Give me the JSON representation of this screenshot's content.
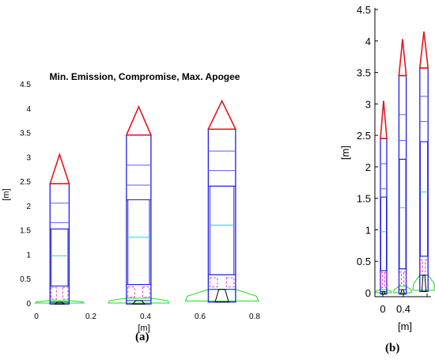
{
  "figure_a": {
    "title": "Min. Emission, Compromise, Max. Apogee",
    "xlabel": "[m]",
    "ylabel": "[m]",
    "x_ticks": [
      "0",
      "0.2",
      "0.4",
      "0.6",
      "0.8"
    ],
    "y_ticks": [
      "0",
      "0.5",
      "1",
      "1.5",
      "2",
      "2.5",
      "3",
      "3.5",
      "4",
      "4.5"
    ],
    "caption": "(a)",
    "xlim": [
      0,
      0.8
    ],
    "ylim": [
      0,
      4.5
    ]
  },
  "figure_b": {
    "xlabel": "[m]",
    "ylabel": "[m]",
    "x_ticks": [
      "0",
      "0.4"
    ],
    "y_ticks": [
      "0",
      "0.5",
      "1",
      "1.5",
      "2",
      "2.5",
      "3",
      "3.5",
      "4",
      "4.5"
    ],
    "caption": "(b)",
    "ylim": [
      0,
      4.5
    ]
  },
  "chart_data": {
    "type": "diagram",
    "rockets": [
      {
        "design": "Min. Emission",
        "center_x": 0.085,
        "width": 0.07,
        "body_top": 2.45,
        "nose_tip": 3.05,
        "sections": [
          2.05,
          1.65,
          1.52,
          0.35,
          0.02
        ],
        "cyan_line": 0.97,
        "magenta_box": [
          0.08,
          0.32
        ],
        "nozzle_bottom": -0.02,
        "fin_span": 0.09,
        "fin_top": 0.05
      },
      {
        "design": "Compromise",
        "center_x": 0.375,
        "width": 0.09,
        "body_top": 3.45,
        "nose_tip": 4.03,
        "sections": [
          2.83,
          2.42,
          2.12,
          0.38,
          0.05
        ],
        "cyan_line": 1.35,
        "magenta_box": [
          0.12,
          0.33
        ],
        "nozzle_bottom": -0.02,
        "fin_span": 0.11,
        "fin_top": 0.1
      },
      {
        "design": "Max. Apogee",
        "center_x": 0.68,
        "width": 0.1,
        "body_top": 3.57,
        "nose_tip": 4.15,
        "sections": [
          3.12,
          2.72,
          2.4,
          0.58,
          0.28
        ],
        "cyan_line": 1.6,
        "magenta_box": [
          0.33,
          0.52
        ],
        "nozzle_bottom": 0.02,
        "fin_span": 0.14,
        "fin_top": 0.28
      }
    ],
    "colors": {
      "nose": "#e8141c",
      "body": "#1f1fe6",
      "section_light": "#5a5aff",
      "cyan": "#22d4e8",
      "magenta": "#e040d8",
      "nozzle": "#000000",
      "fins": "#1fd81f"
    }
  }
}
